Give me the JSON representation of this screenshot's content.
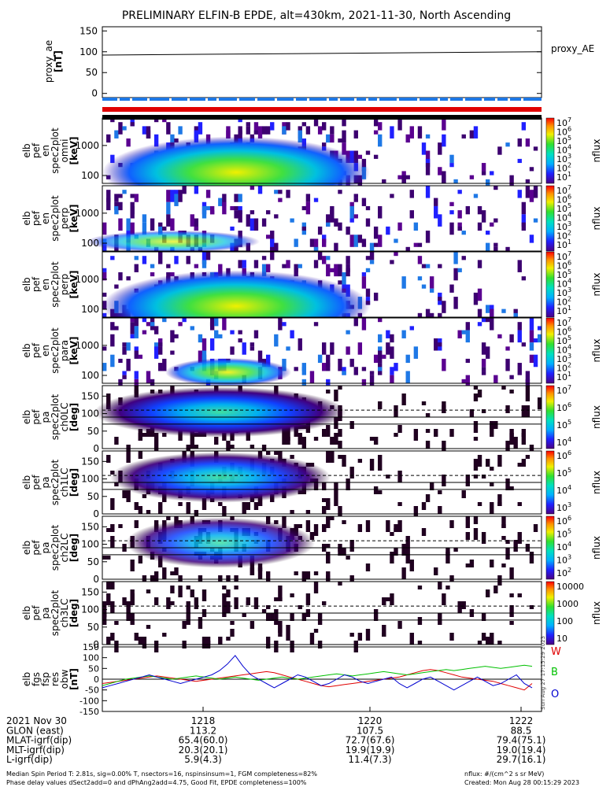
{
  "title": "PRELIMINARY ELFIN-B EPDE, alt=430km, 2021-11-30, North Ascending",
  "proxy_panel": {
    "ylabel": [
      "proxy_ae",
      "[nT]"
    ],
    "yticks": [
      "150",
      "100",
      "50",
      "0"
    ],
    "legend": "proxy_AE",
    "value_start": 92,
    "value_end": 100,
    "ylim": [
      -10,
      160
    ]
  },
  "energy_panels": [
    {
      "ylabel": [
        "elb",
        "pef",
        "en",
        "spec2plot",
        "omni",
        "[keV]"
      ],
      "yticks": [
        "1000",
        "100"
      ],
      "cbar_ticks": [
        "10^7",
        "10^6",
        "10^5",
        "10^4",
        "10^3",
        "10^2",
        "10^1"
      ],
      "cbar_label": "nflux"
    },
    {
      "ylabel": [
        "elb",
        "pef",
        "en",
        "spec2plot",
        "perp",
        "[keV]"
      ],
      "yticks": [
        "1000",
        "100"
      ],
      "cbar_ticks": [
        "10^7",
        "10^6",
        "10^5",
        "10^4",
        "10^3",
        "10^2",
        "10^1"
      ],
      "cbar_label": "nflux"
    },
    {
      "ylabel": [
        "elb",
        "pef",
        "en",
        "spec2plot",
        "perp",
        "[keV]"
      ],
      "yticks": [
        "1000",
        "100"
      ],
      "cbar_ticks": [
        "10^7",
        "10^6",
        "10^5",
        "10^4",
        "10^3",
        "10^2",
        "10^1"
      ],
      "cbar_label": "nflux"
    },
    {
      "ylabel": [
        "elb",
        "pef",
        "en",
        "spec2plot",
        "para",
        "[keV]"
      ],
      "yticks": [
        "1000",
        "100"
      ],
      "cbar_ticks": [
        "10^7",
        "10^6",
        "10^5",
        "10^4",
        "10^3",
        "10^2",
        "10^1"
      ],
      "cbar_label": "nflux"
    }
  ],
  "pa_panels": [
    {
      "ylabel": [
        "elb",
        "pef",
        "pa",
        "spec2plot",
        "ch0LC",
        "[deg]"
      ],
      "yticks": [
        "150",
        "100",
        "50",
        "0"
      ],
      "cbar_ticks": [
        "10^7",
        "10^6",
        "10^5",
        "10^4"
      ],
      "cbar_label": "nflux"
    },
    {
      "ylabel": [
        "elb",
        "pef",
        "pa",
        "spec2plot",
        "ch1LC",
        "[deg]"
      ],
      "yticks": [
        "150",
        "100",
        "50",
        "0"
      ],
      "cbar_ticks": [
        "10^6",
        "10^5",
        "10^4",
        "10^3"
      ],
      "cbar_label": "nflux"
    },
    {
      "ylabel": [
        "elb",
        "pef",
        "pa",
        "spec2plot",
        "ch2LC",
        "[deg]"
      ],
      "yticks": [
        "150",
        "100",
        "50",
        "0"
      ],
      "cbar_ticks": [
        "10^6",
        "10^5",
        "10^4",
        "10^3",
        "10^2"
      ],
      "cbar_label": "nflux"
    },
    {
      "ylabel": [
        "elb",
        "pef",
        "pa",
        "spec2plot",
        "ch3LC",
        "[deg]"
      ],
      "yticks": [
        "150",
        "100",
        "50",
        "0"
      ],
      "cbar_ticks": [
        "10000",
        "1000",
        "100",
        "10"
      ],
      "cbar_label": "nflux"
    }
  ],
  "mag_panel": {
    "ylabel": [
      "elb",
      "fgs",
      "fsp",
      "res",
      "obw",
      "[nT]"
    ],
    "yticks": [
      "150",
      "100",
      "50",
      "0",
      "-50",
      "-100",
      "-150"
    ],
    "legend": [
      {
        "label": "W",
        "color": "#e00000"
      },
      {
        "label": "B",
        "color": "#00c000"
      },
      {
        "label": "O",
        "color": "#0000d0"
      }
    ],
    "side_note": "Sun Aug 27 17:15:29 2023"
  },
  "chart_data": {
    "type": "line",
    "title": "PRELIMINARY ELFIN-B EPDE, alt=430km, 2021-11-30, North Ascending",
    "series": [
      {
        "name": "W",
        "color": "#e00000",
        "values": [
          -20,
          -15,
          -10,
          -5,
          0,
          5,
          10,
          15,
          10,
          5,
          0,
          -5,
          -10,
          -5,
          0,
          5,
          10,
          15,
          20,
          25,
          30,
          35,
          30,
          20,
          10,
          0,
          -10,
          -20,
          -30,
          -35,
          -30,
          -25,
          -20,
          -15,
          -10,
          -5,
          0,
          5,
          10,
          20,
          30,
          40,
          45,
          40,
          30,
          20,
          10,
          5,
          0,
          -5,
          -10,
          -20,
          -30,
          -40,
          -50,
          -20
        ]
      },
      {
        "name": "B",
        "color": "#00c000",
        "values": [
          -30,
          -20,
          -10,
          0,
          5,
          10,
          15,
          10,
          5,
          0,
          5,
          10,
          15,
          10,
          5,
          0,
          5,
          10,
          5,
          0,
          -5,
          0,
          5,
          10,
          5,
          0,
          5,
          10,
          15,
          20,
          25,
          20,
          15,
          20,
          25,
          30,
          35,
          30,
          25,
          20,
          25,
          30,
          35,
          40,
          45,
          40,
          45,
          50,
          55,
          60,
          55,
          50,
          55,
          60,
          65,
          60
        ]
      },
      {
        "name": "O",
        "color": "#0000d0",
        "values": [
          -40,
          -30,
          -20,
          -10,
          0,
          10,
          20,
          10,
          0,
          -10,
          -20,
          -10,
          0,
          10,
          20,
          40,
          70,
          110,
          60,
          20,
          0,
          -20,
          -40,
          -20,
          0,
          20,
          10,
          -10,
          -30,
          -20,
          0,
          20,
          10,
          -10,
          -20,
          -10,
          0,
          10,
          -20,
          -40,
          -20,
          0,
          10,
          -10,
          -30,
          -50,
          -30,
          -10,
          10,
          -10,
          -30,
          -20,
          0,
          20,
          -20,
          -40
        ]
      }
    ],
    "ylim": [
      -150,
      150
    ],
    "x_ticks": [
      "1218",
      "1220",
      "1222"
    ]
  },
  "footer": {
    "rows": [
      {
        "label": "2021 Nov 30",
        "v1": "1218",
        "v2": "1220",
        "v3": "1222"
      },
      {
        "label": "GLON (east)",
        "v1": "113.2",
        "v2": "107.5",
        "v3": "88.5"
      },
      {
        "label": "MLAT-igrf(dip)",
        "v1": "65.4(60.0)",
        "v2": "72.7(67.6)",
        "v3": "79.4(75.1)"
      },
      {
        "label": "MLT-igrf(dip)",
        "v1": "20.3(20.1)",
        "v2": "19.9(19.9)",
        "v3": "19.0(19.4)"
      },
      {
        "label": "L-igrf(dip)",
        "v1": "5.9(4.3)",
        "v2": "11.4(7.3)",
        "v3": "29.7(16.1)"
      }
    ],
    "note1": "Median Spin Period T: 2.81s, sig=0.00% T, nsectors=16, nspinsinsum=1, FGM completeness=82%",
    "note2": "Phase delay values dSect2add=0 and dPhAng2add=4.75, Good Fit, EPDE completeness=100%",
    "units": "nflux: #/(cm^2 s sr MeV)",
    "created": "Created: Mon Aug 28 00:15:29 2023"
  },
  "colors": {
    "bar_blue": "#1e78e6",
    "bar_red": "#e00000"
  }
}
